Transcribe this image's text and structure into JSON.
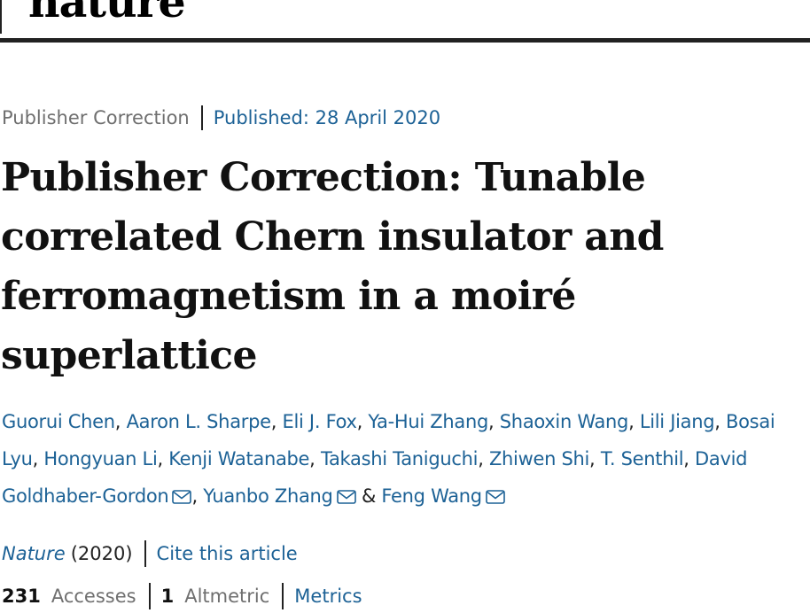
{
  "header": {
    "logo": "nature"
  },
  "article": {
    "type": "Publisher Correction",
    "published": "Published: 28 April 2020",
    "title": "Publisher Correction: Tunable correlated Chern insulator and ferromagnetism in a moiré superlattice",
    "authors": [
      {
        "name": "Guorui Chen",
        "email": false
      },
      {
        "name": "Aaron L. Sharpe",
        "email": false
      },
      {
        "name": "Eli J. Fox",
        "email": false
      },
      {
        "name": "Ya-Hui Zhang",
        "email": false
      },
      {
        "name": "Shaoxin Wang",
        "email": false
      },
      {
        "name": "Lili Jiang",
        "email": false
      },
      {
        "name": "Bosai Lyu",
        "email": false
      },
      {
        "name": "Hongyuan Li",
        "email": false
      },
      {
        "name": "Kenji Watanabe",
        "email": false
      },
      {
        "name": "Takashi Taniguchi",
        "email": false
      },
      {
        "name": "Zhiwen Shi",
        "email": false
      },
      {
        "name": "T. Senthil",
        "email": false
      },
      {
        "name": "David Goldhaber-Gordon",
        "email": true
      },
      {
        "name": "Yuanbo Zhang",
        "email": true
      },
      {
        "name": "Feng Wang",
        "email": true
      }
    ],
    "journal": "Nature",
    "year": "(2020)",
    "cite_label": "Cite this article"
  },
  "metrics": {
    "accesses_count": "231",
    "accesses_label": "Accesses",
    "altmetric_count": "1",
    "altmetric_label": "Altmetric",
    "metrics_link": "Metrics"
  },
  "colors": {
    "link": "#1d6296",
    "muted": "#6f6f6f",
    "text": "#222222"
  },
  "icons": {
    "author_contact": "envelope-icon"
  }
}
